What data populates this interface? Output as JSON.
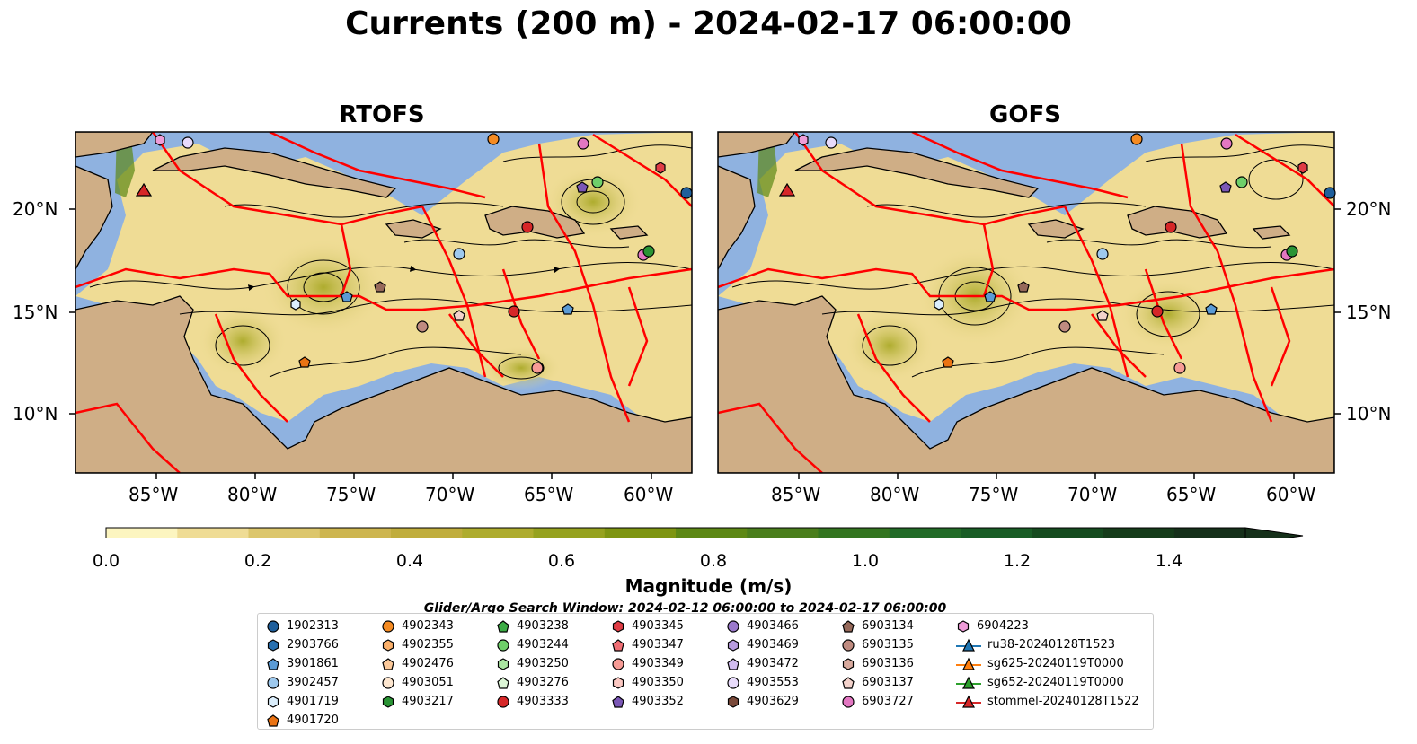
{
  "title": "Currents (200 m) - 2024-02-17 06:00:00",
  "panels": [
    {
      "title": "RTOFS"
    },
    {
      "title": "GOFS"
    }
  ],
  "lat_ticks": [
    "10°N",
    "15°N",
    "20°N"
  ],
  "lon_ticks": [
    "85°W",
    "80°W",
    "75°W",
    "70°W",
    "65°W",
    "60°W"
  ],
  "colorbar": {
    "label": "Magnitude (m/s)",
    "ticks": [
      "0.0",
      "0.2",
      "0.4",
      "0.6",
      "0.8",
      "1.0",
      "1.2",
      "1.4"
    ],
    "colors": [
      "#fcf5c0",
      "#efdc95",
      "#dcc66c",
      "#cdb54f",
      "#c0ad3d",
      "#aeac2e",
      "#96a21f",
      "#7e9512",
      "#5d8815",
      "#4a7e1c",
      "#337520",
      "#226b27",
      "#195d26",
      "#154b1f",
      "#153c1a",
      "#15301a"
    ]
  },
  "map_colors": {
    "land": "#cfae86",
    "water": "#8fb2e0",
    "eez": "#ff0000"
  },
  "search_window": "Glider/Argo Search Window: 2024-02-12 06:00:00 to 2024-02-17 06:00:00",
  "legend": {
    "columns": [
      [
        {
          "label": "1902313",
          "marker": "circle",
          "color": "#1f5f9c"
        },
        {
          "label": "2903766",
          "marker": "hexagon",
          "color": "#2870b0"
        },
        {
          "label": "3901861",
          "marker": "pentagon",
          "color": "#5b9bd5"
        },
        {
          "label": "3902457",
          "marker": "circle",
          "color": "#9ec9ee"
        },
        {
          "label": "4901719",
          "marker": "hexagon",
          "color": "#dbeefc"
        },
        {
          "label": "4901720",
          "marker": "pentagon",
          "color": "#ea7313"
        }
      ],
      [
        {
          "label": "4902343",
          "marker": "circle",
          "color": "#f58b22"
        },
        {
          "label": "4902355",
          "marker": "hexagon",
          "color": "#fbb06a"
        },
        {
          "label": "4902476",
          "marker": "pentagon",
          "color": "#fcc99a"
        },
        {
          "label": "4903051",
          "marker": "circle",
          "color": "#fde6cf"
        },
        {
          "label": "4903217",
          "marker": "hexagon",
          "color": "#2a9435"
        }
      ],
      [
        {
          "label": "4903238",
          "marker": "pentagon",
          "color": "#3cac45"
        },
        {
          "label": "4903244",
          "marker": "circle",
          "color": "#6fd06a"
        },
        {
          "label": "4903250",
          "marker": "hexagon",
          "color": "#aae6a1"
        },
        {
          "label": "4903276",
          "marker": "pentagon",
          "color": "#dcf6d6"
        },
        {
          "label": "4903333",
          "marker": "circle",
          "color": "#d62728"
        }
      ],
      [
        {
          "label": "4903345",
          "marker": "hexagon",
          "color": "#e03c45"
        },
        {
          "label": "4903347",
          "marker": "pentagon",
          "color": "#f06e74"
        },
        {
          "label": "4903349",
          "marker": "circle",
          "color": "#f79b95"
        },
        {
          "label": "4903350",
          "marker": "hexagon",
          "color": "#fcc8c2"
        },
        {
          "label": "4903352",
          "marker": "pentagon",
          "color": "#7b57b6"
        }
      ],
      [
        {
          "label": "4903466",
          "marker": "circle",
          "color": "#9b79cc"
        },
        {
          "label": "4903469",
          "marker": "hexagon",
          "color": "#b89ce0"
        },
        {
          "label": "4903472",
          "marker": "pentagon",
          "color": "#d1bcf0"
        },
        {
          "label": "4903553",
          "marker": "circle",
          "color": "#e8dbfb"
        },
        {
          "label": "4903629",
          "marker": "hexagon",
          "color": "#7a4a3a"
        }
      ],
      [
        {
          "label": "6903134",
          "marker": "pentagon",
          "color": "#96695a"
        },
        {
          "label": "6903135",
          "marker": "circle",
          "color": "#bf8b80"
        },
        {
          "label": "6903136",
          "marker": "hexagon",
          "color": "#d9aa9e"
        },
        {
          "label": "6903137",
          "marker": "pentagon",
          "color": "#f3d2cb"
        },
        {
          "label": "6903727",
          "marker": "circle",
          "color": "#e377c2"
        }
      ],
      [
        {
          "label": "6904223",
          "marker": "hexagon",
          "color": "#ee9cd8"
        },
        {
          "label": "ru38-20240128T1523",
          "marker": "triangle",
          "color": "#1f77b4"
        },
        {
          "label": "sg625-20240119T0000",
          "marker": "triangle",
          "color": "#ff7f0e"
        },
        {
          "label": "sg652-20240119T0000",
          "marker": "triangle",
          "color": "#2ca02c"
        },
        {
          "label": "stommel-20240128T1522",
          "marker": "triangle",
          "color": "#d62728"
        }
      ]
    ]
  }
}
